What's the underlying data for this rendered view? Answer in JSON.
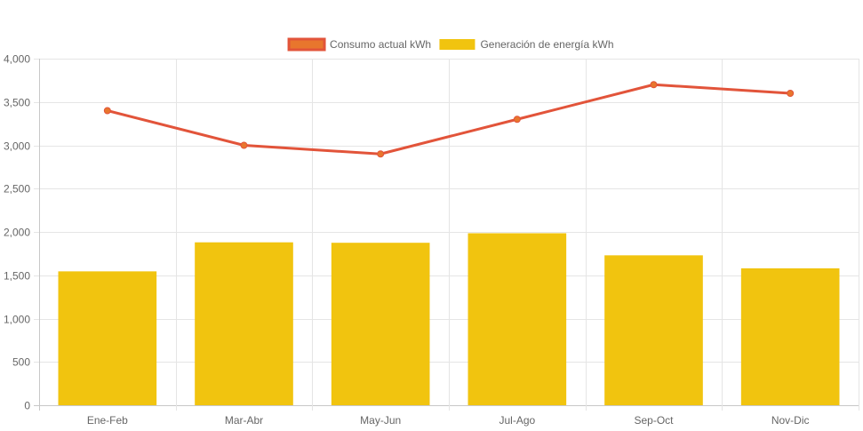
{
  "chart_data": {
    "type": "bar",
    "categories": [
      "Ene-Feb",
      "Mar-Abr",
      "May-Jun",
      "Jul-Ago",
      "Sep-Oct",
      "Nov-Dic"
    ],
    "series": [
      {
        "name": "Consumo actual kWh",
        "render": "line",
        "values": [
          3400,
          3000,
          2900,
          3300,
          3700,
          3600
        ],
        "color": "#e2543a",
        "point_fill": "#e8762d"
      },
      {
        "name": "Generación de energía kWh",
        "render": "bar",
        "values": [
          1545,
          1880,
          1875,
          1985,
          1730,
          1580
        ],
        "color": "#f1c40f"
      }
    ],
    "ylim": [
      0,
      4000
    ],
    "yticks": [
      0,
      500,
      1000,
      1500,
      2000,
      2500,
      3000,
      3500,
      4000
    ],
    "ytick_labels": [
      "0",
      "500",
      "1,000",
      "1,500",
      "2,000",
      "2,500",
      "3,000",
      "3,500",
      "4,000"
    ],
    "title": "",
    "xlabel": "",
    "ylabel": "",
    "grid": true,
    "legend_position": "top-center",
    "grid_color": "#e5e5e5",
    "axis_color": "#c8c8c8"
  }
}
